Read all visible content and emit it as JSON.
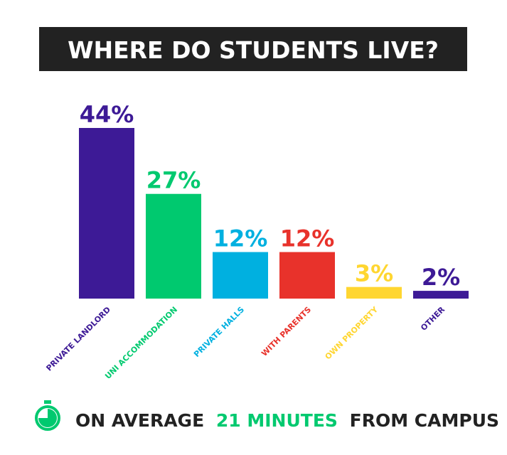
{
  "chart_data": {
    "type": "bar",
    "title": "WHERE DO STUDENTS LIVE?",
    "categories": [
      "PRIVATE LANDLORD",
      "UNI ACCOMMODATION",
      "PRIVATE HALLS",
      "WITH PARENTS",
      "OWN PROPERTY",
      "OTHER"
    ],
    "values": [
      44,
      27,
      12,
      12,
      3,
      2
    ],
    "value_labels": [
      "44%",
      "27%",
      "12%",
      "12%",
      "3%",
      "2%"
    ],
    "colors": [
      "#3d1a96",
      "#00c96f",
      "#00b0e0",
      "#e8322b",
      "#ffd631",
      "#3d1a96"
    ],
    "annotation": [
      "ON AVERAGE",
      "21 MINUTES",
      "FROM CAMPUS"
    ],
    "annotation_highlight_color": "#00c96f"
  }
}
